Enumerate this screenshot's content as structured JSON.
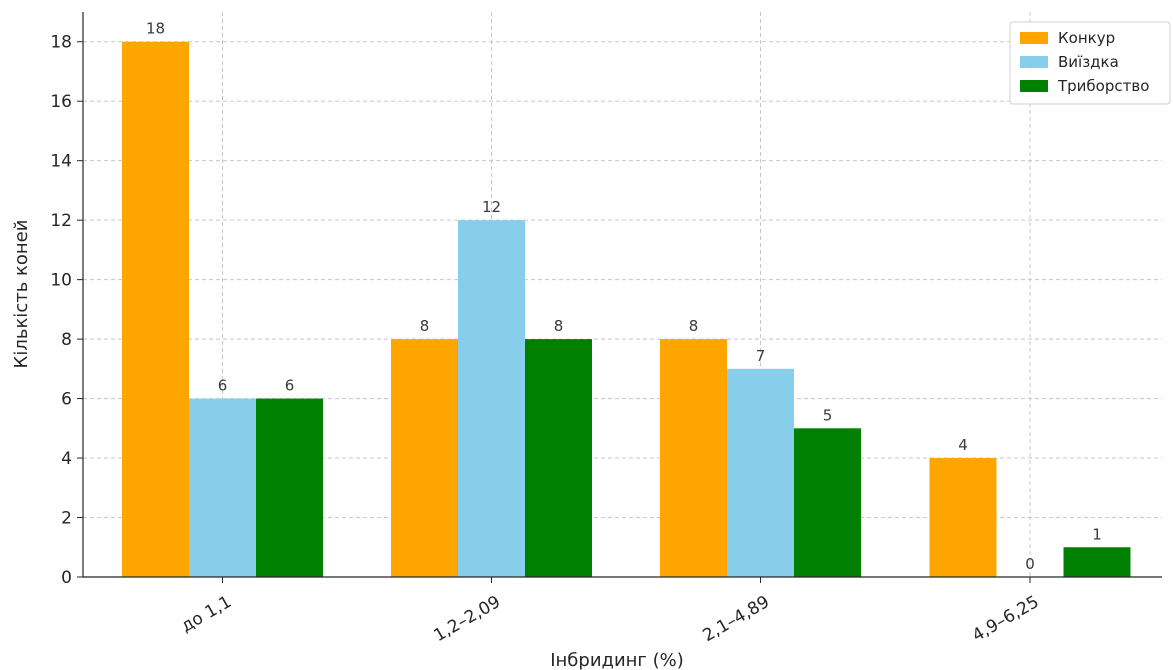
{
  "chart_data": {
    "type": "bar",
    "title": "",
    "xlabel": "Інбридинг (%)",
    "ylabel": "Кількість коней",
    "categories": [
      "до 1,1",
      "1,2–2,09",
      "2,1–4,89",
      "4,9–6,25"
    ],
    "series": [
      {
        "name": "Конкур",
        "values": [
          18,
          8,
          8,
          4
        ],
        "color": "#FFA500"
      },
      {
        "name": "Виїздка",
        "values": [
          6,
          12,
          7,
          0
        ],
        "color": "#87CEEB"
      },
      {
        "name": "Триборство",
        "values": [
          6,
          8,
          5,
          1
        ],
        "color": "#008000"
      }
    ],
    "ylim": [
      0,
      19
    ],
    "yticks": [
      0,
      2,
      4,
      6,
      8,
      10,
      12,
      14,
      16,
      18
    ],
    "grid": true,
    "legend_position": "top-right",
    "data_labels": true
  }
}
